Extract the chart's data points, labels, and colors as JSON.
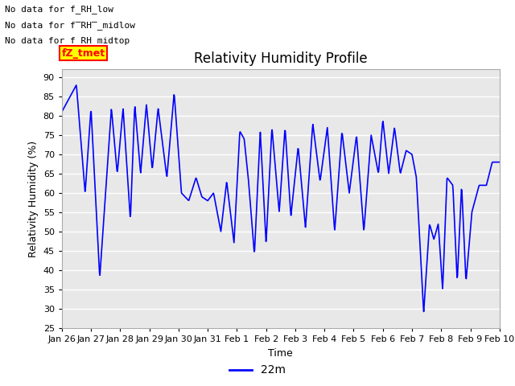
{
  "title": "Relativity Humidity Profile",
  "ylabel": "Relativity Humidity (%)",
  "xlabel": "Time",
  "ylim": [
    25,
    92
  ],
  "yticks": [
    25,
    30,
    35,
    40,
    45,
    50,
    55,
    60,
    65,
    70,
    75,
    80,
    85,
    90
  ],
  "line_color": "blue",
  "line_width": 1.2,
  "legend_label": "22m",
  "bg_color": "#e8e8e8",
  "annotations": [
    "No data for f_RH_low",
    "No data for f̅RH̅_midlow",
    "No data for f_RH_midtop"
  ],
  "annotation_color": "black",
  "annotation_fontsize": 8,
  "box_label": "fZ_tmet",
  "box_color": "red",
  "box_bg": "yellow",
  "xtick_labels": [
    "Jan 26",
    "Jan 27",
    "Jan 28",
    "Jan 29",
    "Jan 30",
    "Jan 31",
    "Feb 1",
    "Feb 2",
    "Feb 3",
    "Feb 4",
    "Feb 5",
    "Feb 6",
    "Feb 7",
    "Feb 8",
    "Feb 9",
    "Feb 10"
  ],
  "grid_color": "white",
  "title_fontsize": 12
}
